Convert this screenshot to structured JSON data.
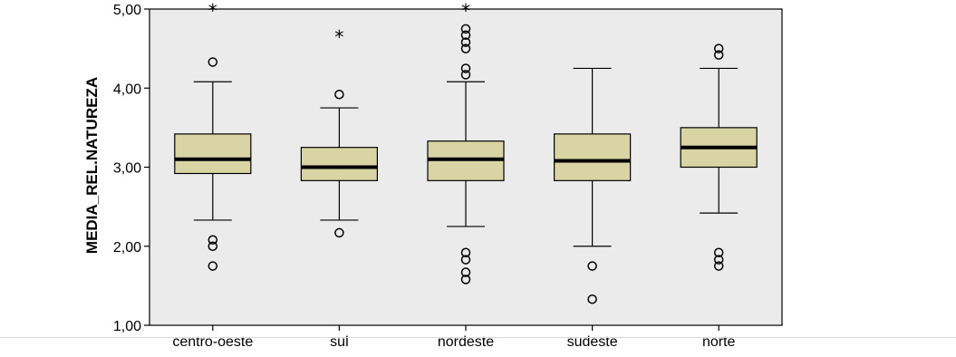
{
  "chart_data": {
    "type": "boxplot",
    "ylabel": "MEDIA_REL.NATUREZA",
    "ylim": [
      1.0,
      5.0
    ],
    "yticks": [
      1.0,
      2.0,
      3.0,
      4.0,
      5.0
    ],
    "ytick_labels": [
      "1,00",
      "2,00",
      "3,00",
      "4,00",
      "5,00"
    ],
    "grid": false,
    "plot_background": "#ebebeb",
    "box_fill": "#d8d4a4",
    "categories": [
      "centro-oeste",
      "sul",
      "nordeste",
      "sudeste",
      "norte"
    ],
    "boxes": [
      {
        "category": "centro-oeste",
        "whisker_low": 2.33,
        "q1": 2.92,
        "median": 3.1,
        "q3": 3.42,
        "whisker_high": 4.08,
        "outliers": [
          4.33,
          2.08,
          2.0,
          1.75
        ],
        "extremes": [
          5.0
        ]
      },
      {
        "category": "sul",
        "whisker_low": 2.33,
        "q1": 2.83,
        "median": 3.0,
        "q3": 3.25,
        "whisker_high": 3.75,
        "outliers": [
          3.92,
          2.17
        ],
        "extremes": [
          4.67
        ]
      },
      {
        "category": "nordeste",
        "whisker_low": 2.25,
        "q1": 2.83,
        "median": 3.1,
        "q3": 3.33,
        "whisker_high": 4.08,
        "outliers": [
          4.75,
          4.67,
          4.58,
          4.5,
          4.25,
          4.17,
          1.92,
          1.83,
          1.67,
          1.58
        ],
        "extremes": [
          5.0
        ]
      },
      {
        "category": "sudeste",
        "whisker_low": 2.0,
        "q1": 2.83,
        "median": 3.08,
        "q3": 3.42,
        "whisker_high": 4.25,
        "outliers": [
          1.75,
          1.33
        ],
        "extremes": []
      },
      {
        "category": "norte",
        "whisker_low": 2.42,
        "q1": 3.0,
        "median": 3.25,
        "q3": 3.5,
        "whisker_high": 4.25,
        "outliers": [
          4.5,
          4.42,
          1.92,
          1.83,
          1.75
        ],
        "extremes": []
      }
    ]
  }
}
